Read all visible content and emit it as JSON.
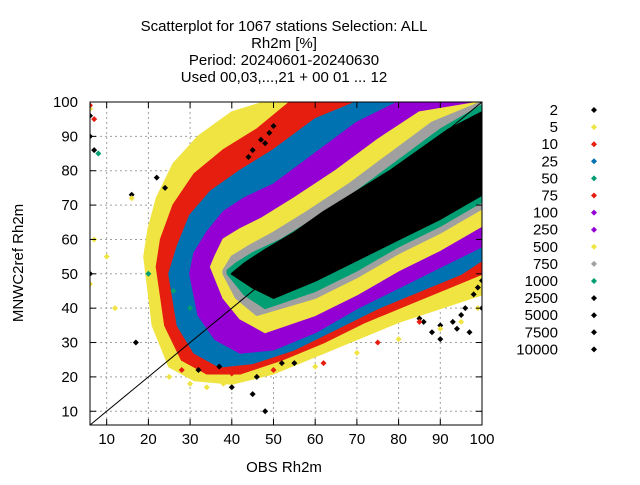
{
  "chart_data": {
    "type": "scatter",
    "title_lines": [
      "Scatterplot for 1067 stations Selection: ALL",
      "Rh2m [%]",
      "Period: 20240601-20240630",
      "Used 00,03,...,21 + 00 01 ... 12"
    ],
    "xlabel": "OBS Rh2m",
    "ylabel": "MNWC2ref Rh2m",
    "xlim": [
      6,
      100
    ],
    "ylim": [
      6,
      100
    ],
    "xticks": [
      10,
      20,
      30,
      40,
      50,
      60,
      70,
      80,
      90,
      100
    ],
    "yticks": [
      10,
      20,
      30,
      40,
      50,
      60,
      70,
      80,
      90,
      100
    ],
    "grid": true,
    "diagonal_line": true,
    "legend_position": "right",
    "legend": [
      {
        "label": "2",
        "color": "#000000"
      },
      {
        "label": "5",
        "color": "#f0e442"
      },
      {
        "label": "10",
        "color": "#e51e10"
      },
      {
        "label": "25",
        "color": "#0072b2"
      },
      {
        "label": "50",
        "color": "#009e73"
      },
      {
        "label": "75",
        "color": "#e51e10"
      },
      {
        "label": "100",
        "color": "#9400d3"
      },
      {
        "label": "250",
        "color": "#9400d3"
      },
      {
        "label": "500",
        "color": "#f0e442"
      },
      {
        "label": "750",
        "color": "#a0a0a0"
      },
      {
        "label": "1000",
        "color": "#009e73"
      },
      {
        "label": "2500",
        "color": "#000000"
      },
      {
        "label": "5000",
        "color": "#000000"
      },
      {
        "label": "7500",
        "color": "#000000"
      },
      {
        "label": "10000",
        "color": "#000000"
      }
    ],
    "density_bands": [
      {
        "level": "10000",
        "color": "#000000",
        "x": [
          40,
          45,
          50,
          60,
          70,
          80,
          90,
          100,
          100,
          92,
          85,
          78,
          70,
          62,
          55,
          48,
          43
        ],
        "y": [
          50,
          46,
          43,
          48,
          54,
          60,
          66,
          73,
          97,
          92,
          86,
          80,
          74,
          68,
          62,
          57,
          53
        ]
      },
      {
        "level": "1000",
        "color": "#009e73",
        "x": [
          39,
          43,
          48,
          60,
          70,
          80,
          90,
          100,
          100,
          90,
          80,
          70,
          60,
          52,
          45,
          41,
          39
        ],
        "y": [
          50,
          44,
          40,
          45,
          51,
          58,
          64,
          71,
          99,
          92,
          83,
          74,
          66,
          60,
          56,
          53,
          51
        ]
      },
      {
        "level": "750",
        "color": "#a0a0a0",
        "x": [
          38,
          41,
          46,
          60,
          70,
          80,
          90,
          100,
          100,
          88,
          78,
          68,
          58,
          50,
          44,
          40,
          38
        ],
        "y": [
          50,
          43,
          38,
          43,
          49,
          56,
          62,
          69,
          100,
          94,
          85,
          76,
          68,
          62,
          58,
          55,
          51
        ]
      },
      {
        "level": "500",
        "color": "#f0e442",
        "x": [
          35,
          38,
          42,
          48,
          60,
          70,
          80,
          90,
          100,
          100,
          85,
          75,
          65,
          55,
          47,
          42,
          38,
          36
        ],
        "y": [
          52,
          43,
          37,
          33,
          38,
          44,
          51,
          57,
          64,
          100,
          97,
          89,
          80,
          72,
          66,
          63,
          60,
          55
        ]
      },
      {
        "level": "250",
        "color": "#9400d3",
        "x": [
          30,
          32,
          36,
          42,
          50,
          60,
          70,
          80,
          90,
          100,
          100,
          80,
          70,
          60,
          50,
          43,
          38,
          34,
          31
        ],
        "y": [
          50,
          38,
          31,
          27,
          28,
          33,
          40,
          46,
          52,
          58,
          100,
          100,
          94,
          85,
          76,
          72,
          68,
          62,
          56
        ]
      },
      {
        "level": "25",
        "color": "#0072b2",
        "x": [
          25,
          27,
          31,
          37,
          45,
          55,
          65,
          75,
          85,
          95,
          100,
          100,
          70,
          60,
          50,
          42,
          35,
          30,
          27
        ],
        "y": [
          50,
          35,
          27,
          23,
          24,
          28,
          34,
          40,
          45,
          50,
          54,
          100,
          100,
          95,
          86,
          80,
          74,
          67,
          58
        ]
      },
      {
        "level": "10",
        "color": "#e51e10",
        "x": [
          22,
          24,
          28,
          34,
          42,
          52,
          62,
          72,
          82,
          92,
          100,
          100,
          62,
          54,
          46,
          38,
          31,
          26,
          23
        ],
        "y": [
          52,
          35,
          25,
          21,
          21,
          25,
          30,
          36,
          41,
          46,
          50,
          100,
          100,
          100,
          92,
          86,
          79,
          70,
          60
        ]
      },
      {
        "level": "5",
        "color": "#f0e442",
        "x": [
          19,
          21,
          25,
          31,
          40,
          50,
          60,
          70,
          80,
          90,
          100,
          100,
          56,
          48,
          40,
          32,
          26,
          22,
          20
        ],
        "y": [
          55,
          35,
          23,
          19,
          18,
          21,
          26,
          31,
          36,
          40,
          44,
          100,
          100,
          100,
          97,
          90,
          82,
          72,
          63
        ]
      }
    ],
    "outlier_points": [
      {
        "color": "#000000",
        "x": [
          6,
          6,
          7,
          6,
          16,
          17,
          22,
          24,
          32,
          37,
          40,
          45,
          48,
          46,
          52,
          55,
          86,
          90,
          93,
          95,
          96,
          98,
          99,
          100,
          100,
          97,
          94,
          90,
          88,
          85,
          48,
          49,
          50,
          47,
          45,
          44
        ],
        "y": [
          96,
          90,
          86,
          50,
          73,
          30,
          78,
          75,
          22,
          23,
          17,
          15,
          10,
          20,
          24,
          24,
          36,
          35,
          36,
          38,
          40,
          44,
          46,
          48,
          40,
          33,
          34,
          31,
          33,
          37,
          88,
          91,
          93,
          89,
          86,
          84
        ]
      },
      {
        "color": "#f0e442",
        "x": [
          6,
          6,
          7,
          10,
          16,
          12,
          25,
          30,
          34,
          38,
          60,
          70,
          80,
          90,
          95,
          99
        ],
        "y": [
          98,
          47,
          60,
          55,
          72,
          40,
          20,
          18,
          17,
          18,
          23,
          27,
          31,
          34,
          36,
          40
        ]
      },
      {
        "color": "#e51e10",
        "x": [
          6,
          7,
          28,
          40,
          50,
          62,
          75,
          85
        ],
        "y": [
          99,
          95,
          22,
          21,
          22,
          24,
          30,
          36
        ]
      },
      {
        "color": "#009e73",
        "x": [
          8,
          20,
          26,
          30
        ],
        "y": [
          85,
          50,
          45,
          40
        ]
      }
    ]
  }
}
